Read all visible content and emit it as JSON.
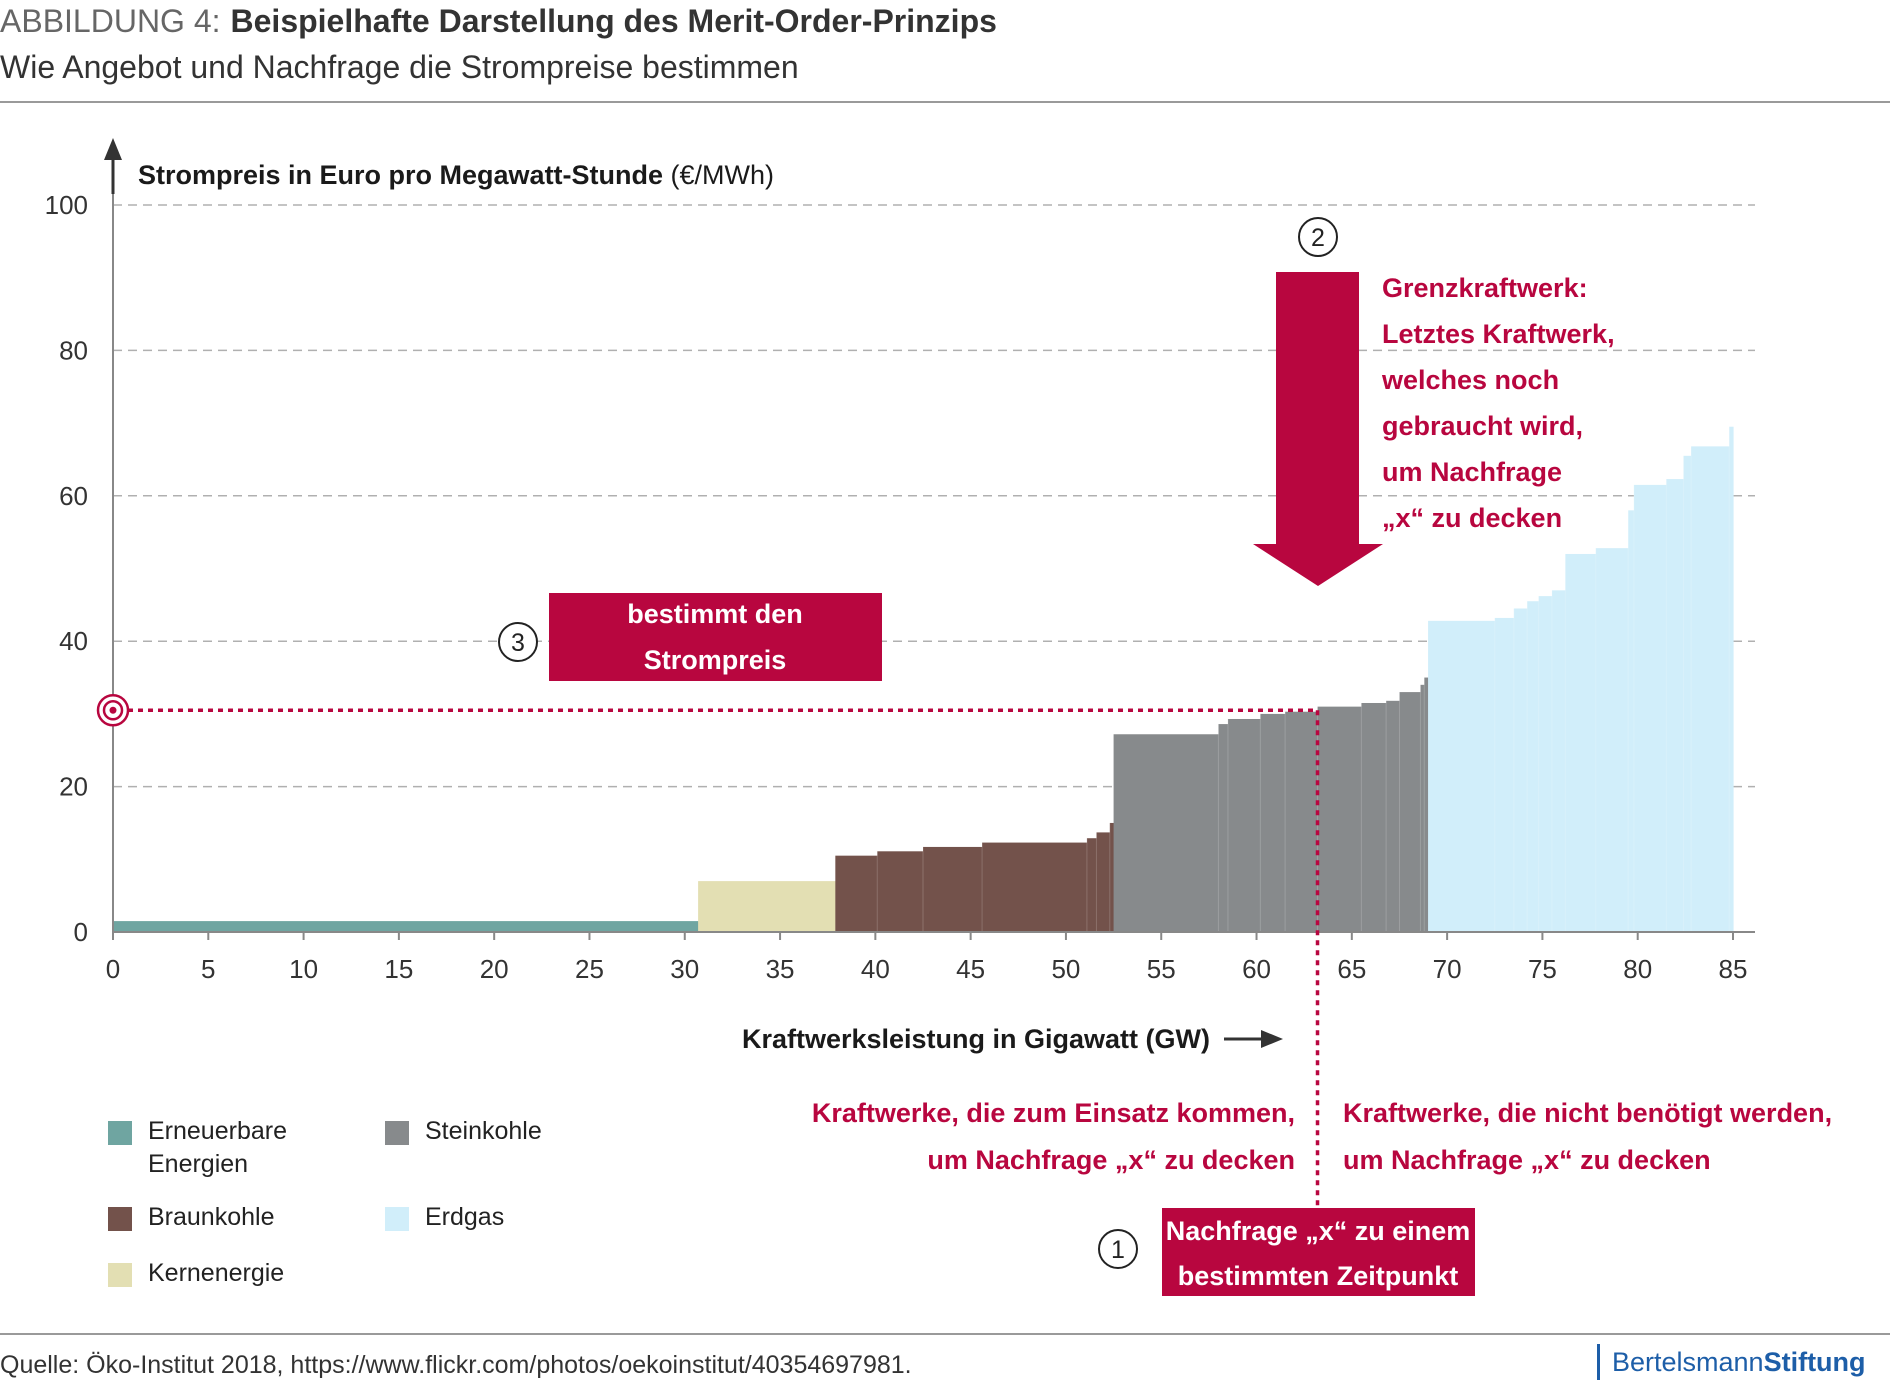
{
  "header": {
    "label": "ABBILDUNG 4:",
    "title": "Beispielhafte Darstellung des Merit-Order-Prinzips",
    "subtitle": "Wie Angebot und Nachfrage die Strompreise bestimmen"
  },
  "chart_data": {
    "type": "bar",
    "subtype": "merit-order step chart (stacked capacity blocks)",
    "ylabel_bold": "Strompreis in Euro pro Megawatt-Stunde",
    "ylabel_unit": "(€/MWh)",
    "xlabel": "Kraftwerksleistung in Gigawatt (GW)",
    "xlim": [
      0,
      85
    ],
    "ylim": [
      0,
      100
    ],
    "x_ticks": [
      0,
      5,
      10,
      15,
      20,
      25,
      30,
      35,
      40,
      45,
      50,
      55,
      60,
      65,
      70,
      75,
      80,
      85
    ],
    "y_ticks": [
      0,
      20,
      40,
      60,
      80,
      100
    ],
    "grid": "horizontal dashed",
    "series": [
      {
        "name": "Erneuerbare Energien",
        "color": "#6fa5a1",
        "blocks": [
          {
            "x0": 0,
            "x1": 30.7,
            "y": 1.5
          }
        ]
      },
      {
        "name": "Kernenergie",
        "color": "#e3dfb3",
        "blocks": [
          {
            "x0": 30.7,
            "x1": 37.9,
            "y": 7.0
          }
        ]
      },
      {
        "name": "Braunkohle",
        "color": "#73524b",
        "blocks": [
          {
            "x0": 37.9,
            "x1": 40.1,
            "y": 10.5
          },
          {
            "x0": 40.1,
            "x1": 42.5,
            "y": 11.1
          },
          {
            "x0": 42.5,
            "x1": 45.6,
            "y": 11.7
          },
          {
            "x0": 45.6,
            "x1": 51.1,
            "y": 12.3
          },
          {
            "x0": 51.1,
            "x1": 51.6,
            "y": 12.9
          },
          {
            "x0": 51.6,
            "x1": 52.3,
            "y": 13.7
          },
          {
            "x0": 52.3,
            "x1": 52.5,
            "y": 15.0
          }
        ]
      },
      {
        "name": "Steinkohle",
        "color": "#878a8c",
        "blocks": [
          {
            "x0": 52.5,
            "x1": 58.0,
            "y": 27.2
          },
          {
            "x0": 58.0,
            "x1": 58.5,
            "y": 28.6
          },
          {
            "x0": 58.5,
            "x1": 60.2,
            "y": 29.3
          },
          {
            "x0": 60.2,
            "x1": 61.5,
            "y": 30.0
          },
          {
            "x0": 61.5,
            "x1": 63.2,
            "y": 30.3
          },
          {
            "x0": 63.2,
            "x1": 65.5,
            "y": 31.0
          },
          {
            "x0": 65.5,
            "x1": 66.8,
            "y": 31.5
          },
          {
            "x0": 66.8,
            "x1": 67.5,
            "y": 31.8
          },
          {
            "x0": 67.5,
            "x1": 68.6,
            "y": 33.0
          },
          {
            "x0": 68.6,
            "x1": 68.8,
            "y": 34.0
          },
          {
            "x0": 68.8,
            "x1": 69.0,
            "y": 35.0
          }
        ]
      },
      {
        "name": "Erdgas",
        "color": "#d1eefa",
        "blocks": [
          {
            "x0": 69.0,
            "x1": 72.5,
            "y": 42.8
          },
          {
            "x0": 72.5,
            "x1": 73.5,
            "y": 43.2
          },
          {
            "x0": 73.5,
            "x1": 74.2,
            "y": 44.5
          },
          {
            "x0": 74.2,
            "x1": 74.8,
            "y": 45.5
          },
          {
            "x0": 74.8,
            "x1": 75.5,
            "y": 46.2
          },
          {
            "x0": 75.5,
            "x1": 76.2,
            "y": 47.0
          },
          {
            "x0": 76.2,
            "x1": 77.8,
            "y": 52.0
          },
          {
            "x0": 77.8,
            "x1": 79.5,
            "y": 52.8
          },
          {
            "x0": 79.5,
            "x1": 79.8,
            "y": 58.0
          },
          {
            "x0": 79.8,
            "x1": 81.5,
            "y": 61.5
          },
          {
            "x0": 81.5,
            "x1": 82.4,
            "y": 62.3
          },
          {
            "x0": 82.4,
            "x1": 82.8,
            "y": 65.5
          },
          {
            "x0": 82.8,
            "x1": 84.8,
            "y": 66.8
          },
          {
            "x0": 84.8,
            "x1": 85.0,
            "y": 69.5
          }
        ]
      }
    ],
    "demand_x": 63.2,
    "price_y": 30.5,
    "annotations": {
      "badge1": "1",
      "badge2": "2",
      "badge3": "3",
      "demand_box": [
        "Nachfrage „x“ zu einem",
        "bestimmten Zeitpunkt"
      ],
      "marginal_plant": [
        "Grenzkraftwerk:",
        "Letztes Kraftwerk,",
        "welches noch",
        "gebraucht wird,",
        "um Nachfrage",
        "„x“ zu decken"
      ],
      "price_box": [
        "bestimmt den",
        "Strompreis"
      ],
      "used_plants": [
        "Kraftwerke, die zum Einsatz kommen,",
        "um Nachfrage „x“ zu decken"
      ],
      "unused_plants": [
        "Kraftwerke, die nicht benötigt werden,",
        "um Nachfrage „x“ zu decken"
      ]
    },
    "accent_color": "#b8063f"
  },
  "legend": [
    {
      "label": "Erneuerbare",
      "label2": "Energien",
      "color": "#6fa5a1"
    },
    {
      "label": "Steinkohle",
      "color": "#878a8c"
    },
    {
      "label": "Braunkohle",
      "color": "#73524b"
    },
    {
      "label": "Erdgas",
      "color": "#d1eefa"
    },
    {
      "label": "Kernenergie",
      "color": "#e3dfb3"
    }
  ],
  "footer": {
    "source": "Quelle: Öko-Institut 2018, https://www.flickr.com/photos/oekoinstitut/40354697981.",
    "brand_1": "Bertelsmann",
    "brand_2": "Stiftung"
  }
}
